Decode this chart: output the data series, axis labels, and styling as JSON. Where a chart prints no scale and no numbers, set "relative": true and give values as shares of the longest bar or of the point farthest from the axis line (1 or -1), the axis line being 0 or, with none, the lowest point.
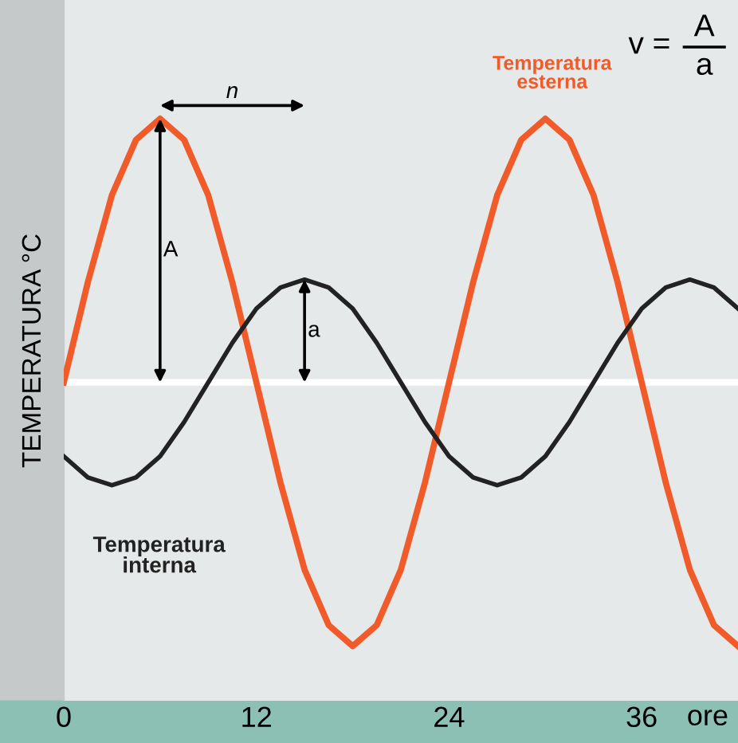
{
  "chart_data": {
    "type": "line",
    "relative": true,
    "xlabel": "ore",
    "ylabel": "TEMPERATURA °C",
    "x": [
      0,
      1.5,
      3,
      4.5,
      6,
      7.5,
      9,
      10.5,
      12,
      13.5,
      15,
      16.5,
      18,
      19.5,
      21,
      22.5,
      24,
      25.5,
      27,
      28.5,
      30,
      31.5,
      33,
      34.5,
      36,
      37.5,
      39,
      40.5,
      42
    ],
    "xlim": [
      0,
      42
    ],
    "xticks": [
      0,
      12,
      24,
      36
    ],
    "series": [
      {
        "name": "Temperatura esterna",
        "color": "#f15a29",
        "values": [
          0,
          0.38,
          0.71,
          0.92,
          1,
          0.92,
          0.71,
          0.38,
          0,
          -0.38,
          -0.71,
          -0.92,
          -1,
          -0.92,
          -0.71,
          -0.38,
          0,
          0.38,
          0.71,
          0.92,
          1,
          0.92,
          0.71,
          0.38,
          0,
          -0.38,
          -0.71,
          -0.92,
          -1
        ]
      },
      {
        "name": "Temperatura interna",
        "color": "#222222",
        "values": [
          -0.28,
          -0.36,
          -0.39,
          -0.36,
          -0.28,
          -0.15,
          0,
          0.15,
          0.28,
          0.36,
          0.39,
          0.36,
          0.28,
          0.15,
          0,
          -0.15,
          -0.28,
          -0.36,
          -0.39,
          -0.36,
          -0.28,
          -0.15,
          0,
          0.15,
          0.28,
          0.36,
          0.39,
          0.36,
          0.28
        ]
      }
    ],
    "annotations": [
      "A",
      "a",
      "n",
      "v =",
      "A",
      "a"
    ],
    "marker": "none",
    "line_style": "solid",
    "grid": false,
    "legend": false
  }
}
